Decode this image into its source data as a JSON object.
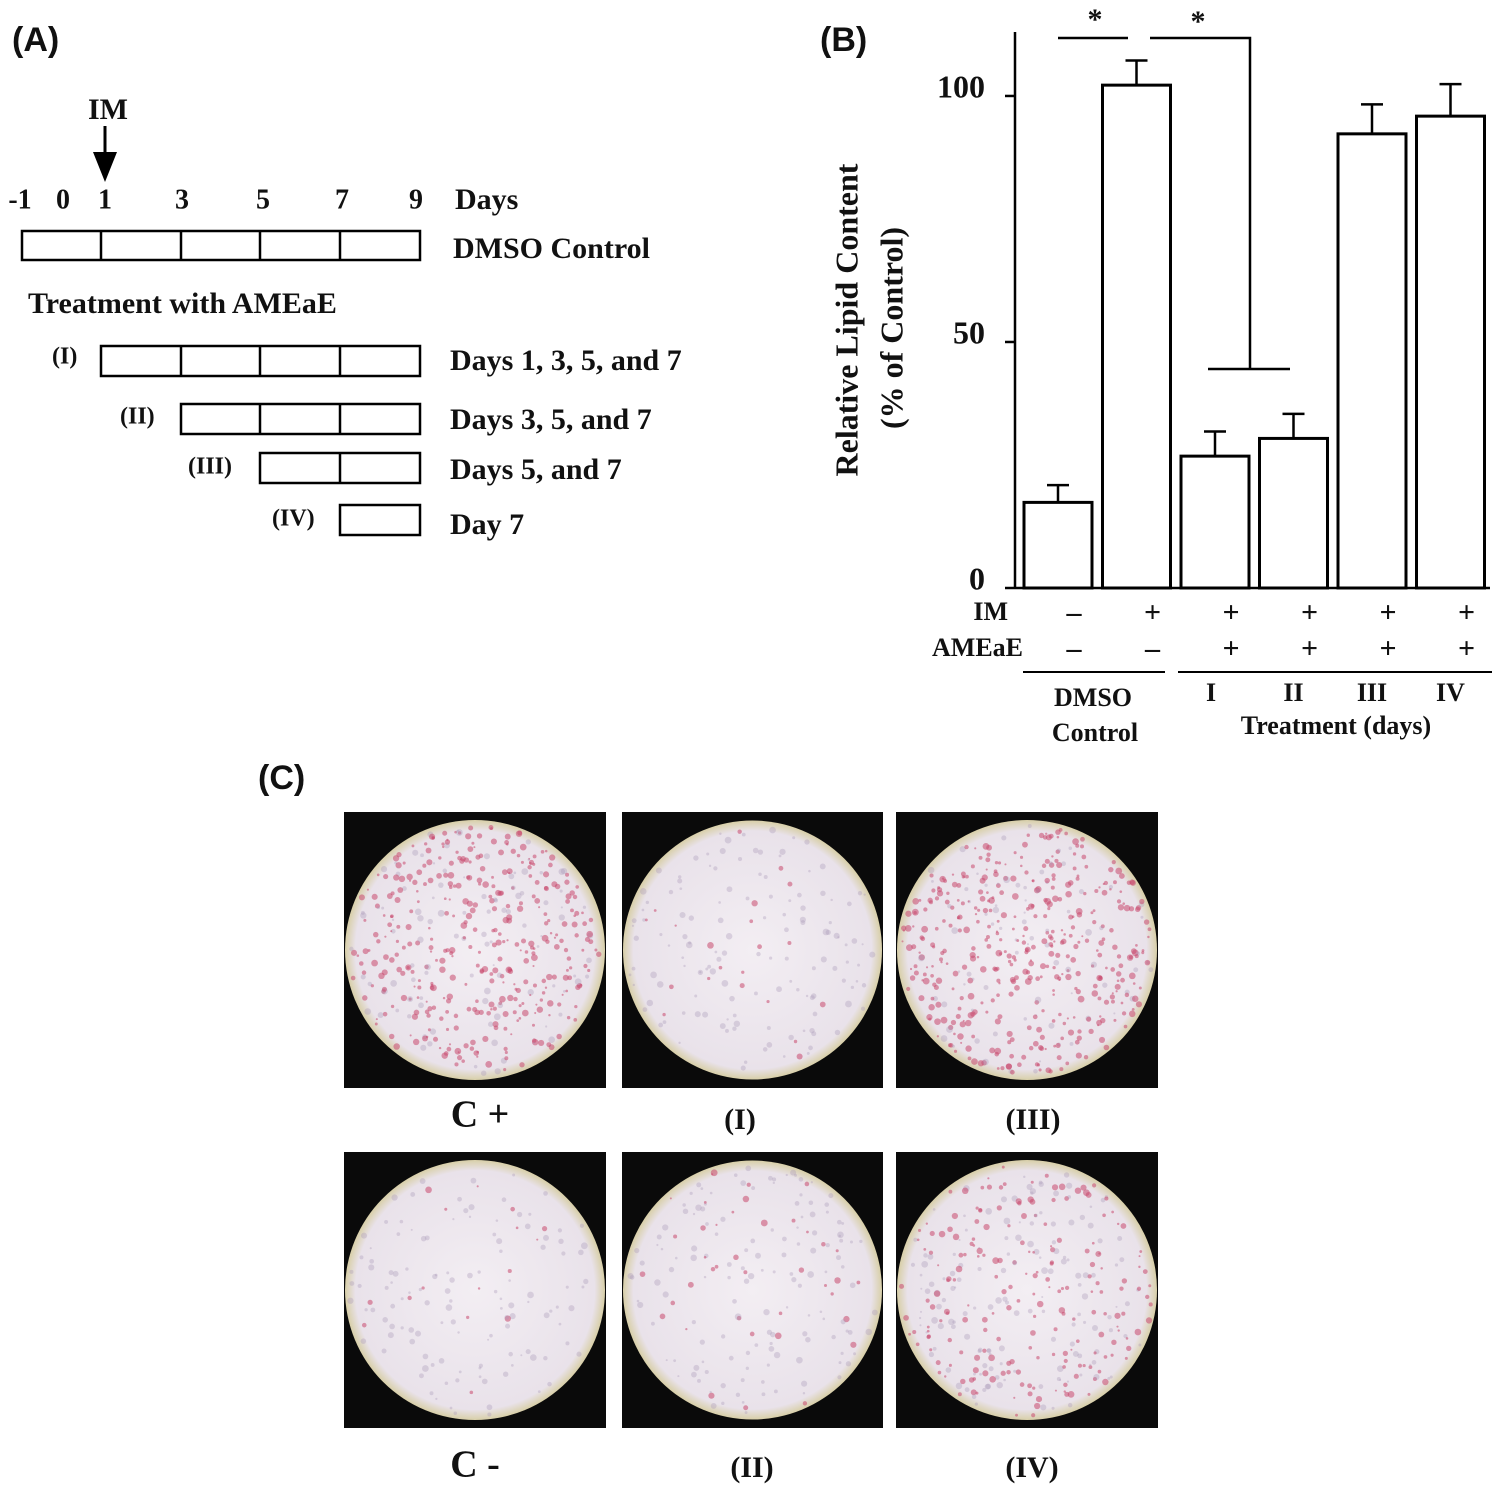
{
  "panel_a": {
    "label": "(A)",
    "im_label": "IM",
    "days": [
      -1,
      0,
      1,
      3,
      5,
      7,
      9
    ],
    "days_label": "Days",
    "control_label": "DMSO Control",
    "treatment_title": "Treatment with AMEaE",
    "rows": [
      {
        "label": "(I)",
        "description": "Days 1, 3, 5, and  7"
      },
      {
        "label": "(II)",
        "description": "Days 3, 5,  and 7"
      },
      {
        "label": "(III)",
        "description": "Days 5, and  7"
      },
      {
        "label": "(IV)",
        "description": "Day 7"
      }
    ]
  },
  "chart_data": {
    "type": "bar",
    "panel_label": "(B)",
    "ylabel": [
      "Relative Lipid Content",
      "(% of Control)"
    ],
    "categories": [
      null,
      null,
      "I",
      "II",
      "III",
      "IV"
    ],
    "values": [
      17.4,
      102.2,
      26.8,
      30.4,
      92.3,
      95.9
    ],
    "errors": [
      3.5,
      5,
      5,
      5,
      6,
      6.5
    ],
    "color": "#ffffff",
    "ylim": [
      0,
      113
    ],
    "yticks": [
      0,
      50,
      100
    ],
    "row_labels": [
      "IM",
      "AMEaE"
    ],
    "rows": [
      [
        "–",
        "+",
        "+",
        "+",
        "+",
        "+"
      ],
      [
        "–",
        "–",
        "+",
        "+",
        "+",
        "+"
      ]
    ],
    "group_labels": [
      "DMSO",
      "Control",
      "Treatment (days)"
    ],
    "annotations": [
      "*",
      "*"
    ]
  },
  "panel_c": {
    "label": "(C)",
    "captions": [
      "C +",
      "(I)",
      "(III)",
      "C -",
      "(II)",
      "(IV)"
    ]
  }
}
